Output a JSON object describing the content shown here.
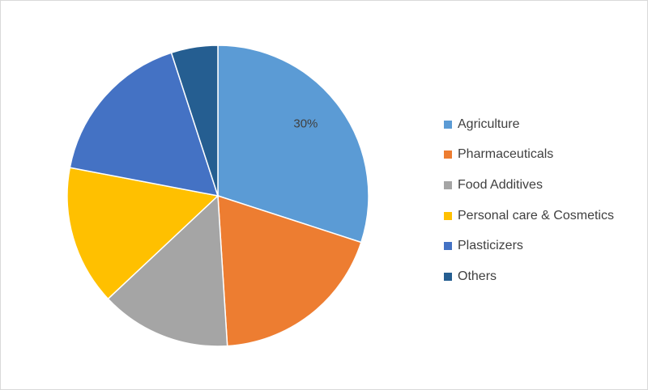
{
  "chart_data": {
    "type": "pie",
    "title": "",
    "start_angle_deg": 0,
    "direction": "clockwise",
    "legend_position": "right",
    "slices": [
      {
        "name": "Agriculture",
        "value": 30,
        "color": "#5B9BD5",
        "label": "30%"
      },
      {
        "name": "Pharmaceuticals",
        "value": 19,
        "color": "#ED7D31",
        "label": ""
      },
      {
        "name": "Food Additives",
        "value": 14,
        "color": "#A5A5A5",
        "label": ""
      },
      {
        "name": "Personal care & Cosmetics",
        "value": 15,
        "color": "#FFC000",
        "label": ""
      },
      {
        "name": "Plasticizers",
        "value": 17,
        "color": "#4472C4",
        "label": ""
      },
      {
        "name": "Others",
        "value": 5,
        "color": "#255E91",
        "label": ""
      }
    ]
  }
}
